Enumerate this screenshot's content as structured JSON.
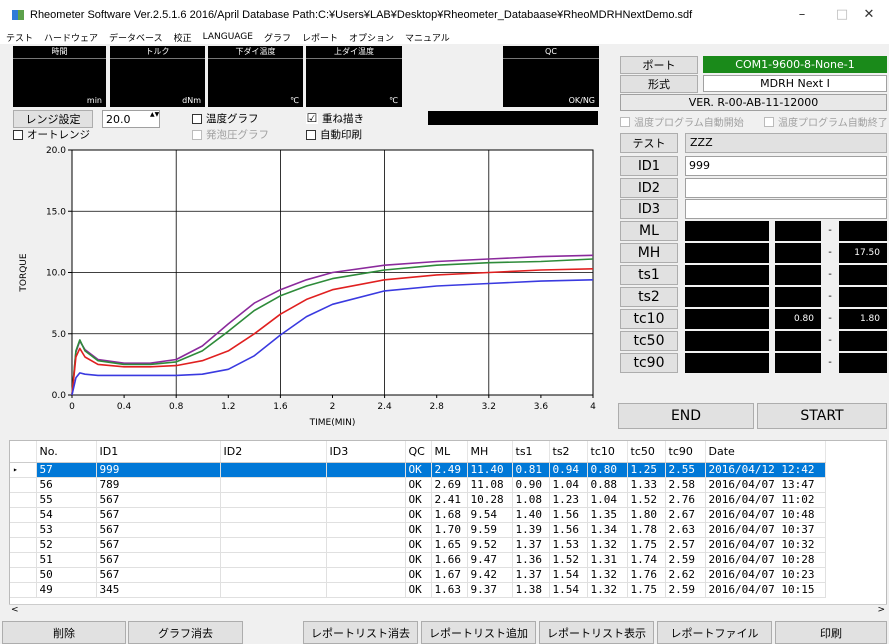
{
  "window": {
    "title": "Rheometer Software Ver.2.5.1.6  2016/April     Database Path:C:¥Users¥LAB¥Desktop¥Rheometer_Databaase¥RheoMDRHNextDemo.sdf",
    "minimize": "–",
    "maximize": "□",
    "close": "✕"
  },
  "menu": [
    "テスト",
    "ハードウェア",
    "データベース",
    "校正",
    "LANGUAGE",
    "グラフ",
    "レポート",
    "オプション",
    "マニュアル"
  ],
  "displays": {
    "time": {
      "label": "時間",
      "unit": "min"
    },
    "torque": {
      "label": "トルク",
      "unit": "dNm"
    },
    "lower_die": {
      "label": "下ダイ温度",
      "unit": "℃"
    },
    "upper_die": {
      "label": "上ダイ温度",
      "unit": "℃"
    },
    "qc": {
      "label": "QC",
      "unit": "OK/NG"
    }
  },
  "range": {
    "button": "レンジ設定",
    "value": "20.0",
    "auto_range": "オートレンジ",
    "spin": "▲▼"
  },
  "options": {
    "temp_graph": "温度グラフ",
    "foam_graph": "発泡圧グラフ",
    "overlay": "重ね描き",
    "overlay_check": "☑",
    "auto_print": "自動印刷",
    "temp_prog_start": "温度プログラム自動開始",
    "temp_prog_end": "温度プログラム自動終了"
  },
  "connection": {
    "port_label": "ポート",
    "port_value": "COM1-9600-8-None-1",
    "model_label": "形式",
    "model_value": "MDRH Next I",
    "version": "VER. R-00-AB-11-12000",
    "port_color": "#1a8a1a"
  },
  "test": {
    "label": "テスト",
    "value": "ZZZ"
  },
  "ids": [
    {
      "label": "ID1",
      "value": "999"
    },
    {
      "label": "ID2",
      "value": ""
    },
    {
      "label": "ID3",
      "value": ""
    }
  ],
  "metrics": [
    {
      "label": "ML",
      "min": "",
      "max": ""
    },
    {
      "label": "MH",
      "min": "",
      "max": "17.50"
    },
    {
      "label": "ts1",
      "min": "",
      "max": ""
    },
    {
      "label": "ts2",
      "min": "",
      "max": ""
    },
    {
      "label": "tc10",
      "min": "0.80",
      "max": "1.80"
    },
    {
      "label": "tc50",
      "min": "",
      "max": ""
    },
    {
      "label": "tc90",
      "min": "",
      "max": ""
    }
  ],
  "metric_dash": "-",
  "actions": {
    "end": "END",
    "start": "START"
  },
  "chart_data": {
    "type": "line",
    "xlabel": "TIME(MIN)",
    "ylabel": "TORQUE",
    "xlim": [
      0,
      4
    ],
    "ylim": [
      0,
      20
    ],
    "x_ticks": [
      "0",
      "0.4",
      "0.8",
      "1.2",
      "1.6",
      "2",
      "2.4",
      "2.8",
      "3.2",
      "3.6",
      "4"
    ],
    "y_ticks": [
      "0.0",
      "5.0",
      "10.0",
      "15.0",
      "20.0"
    ],
    "grid": true,
    "series": [
      {
        "color": "#8b2a9c",
        "x": [
          0,
          0.03,
          0.06,
          0.1,
          0.2,
          0.4,
          0.6,
          0.8,
          1.0,
          1.2,
          1.4,
          1.6,
          1.8,
          2.0,
          2.4,
          2.8,
          3.2,
          3.6,
          4.0
        ],
        "y": [
          0,
          3.5,
          4.4,
          3.7,
          2.9,
          2.6,
          2.6,
          2.9,
          4.0,
          5.8,
          7.5,
          8.6,
          9.4,
          10.0,
          10.6,
          10.9,
          11.1,
          11.3,
          11.4
        ]
      },
      {
        "color": "#2e8b3a",
        "x": [
          0,
          0.03,
          0.06,
          0.1,
          0.2,
          0.4,
          0.6,
          0.8,
          1.0,
          1.2,
          1.4,
          1.6,
          1.8,
          2.0,
          2.4,
          2.8,
          3.2,
          3.6,
          4.0
        ],
        "y": [
          0,
          3.6,
          4.5,
          3.6,
          2.8,
          2.5,
          2.5,
          2.7,
          3.6,
          5.2,
          6.9,
          8.1,
          8.9,
          9.5,
          10.2,
          10.6,
          10.8,
          10.9,
          11.1
        ]
      },
      {
        "color": "#e02020",
        "x": [
          0,
          0.03,
          0.06,
          0.1,
          0.2,
          0.4,
          0.6,
          0.8,
          1.0,
          1.2,
          1.4,
          1.6,
          1.8,
          2.0,
          2.4,
          2.8,
          3.2,
          3.6,
          4.0
        ],
        "y": [
          0,
          3.1,
          3.8,
          3.1,
          2.5,
          2.3,
          2.3,
          2.4,
          2.8,
          3.6,
          5.0,
          6.6,
          7.8,
          8.6,
          9.4,
          9.8,
          10.0,
          10.2,
          10.3
        ]
      },
      {
        "color": "#3a3ae0",
        "x": [
          0,
          0.03,
          0.06,
          0.1,
          0.2,
          0.4,
          0.6,
          0.8,
          1.0,
          1.2,
          1.4,
          1.6,
          1.8,
          2.0,
          2.4,
          2.8,
          3.2,
          3.6,
          4.0
        ],
        "y": [
          0,
          1.4,
          1.8,
          1.7,
          1.6,
          1.6,
          1.6,
          1.6,
          1.7,
          2.1,
          3.2,
          4.9,
          6.4,
          7.4,
          8.5,
          8.9,
          9.1,
          9.3,
          9.4
        ]
      }
    ]
  },
  "table": {
    "columns": [
      "No.",
      "ID1",
      "ID2",
      "ID3",
      "QC",
      "ML",
      "MH",
      "ts1",
      "ts2",
      "tc10",
      "tc50",
      "tc90",
      "Date"
    ],
    "rows": [
      [
        "57",
        "999",
        "",
        "",
        "OK",
        "2.49",
        "11.40",
        "0.81",
        "0.94",
        "0.80",
        "1.25",
        "2.55",
        "2016/04/12 12:42"
      ],
      [
        "56",
        "789",
        "",
        "",
        "OK",
        "2.69",
        "11.08",
        "0.90",
        "1.04",
        "0.88",
        "1.33",
        "2.58",
        "2016/04/07 13:47"
      ],
      [
        "55",
        "567",
        "",
        "",
        "OK",
        "2.41",
        "10.28",
        "1.08",
        "1.23",
        "1.04",
        "1.52",
        "2.76",
        "2016/04/07 11:02"
      ],
      [
        "54",
        "567",
        "",
        "",
        "OK",
        "1.68",
        "9.54",
        "1.40",
        "1.56",
        "1.35",
        "1.80",
        "2.67",
        "2016/04/07 10:48"
      ],
      [
        "53",
        "567",
        "",
        "",
        "OK",
        "1.70",
        "9.59",
        "1.39",
        "1.56",
        "1.34",
        "1.78",
        "2.63",
        "2016/04/07 10:37"
      ],
      [
        "52",
        "567",
        "",
        "",
        "OK",
        "1.65",
        "9.52",
        "1.37",
        "1.53",
        "1.32",
        "1.75",
        "2.57",
        "2016/04/07 10:32"
      ],
      [
        "51",
        "567",
        "",
        "",
        "OK",
        "1.66",
        "9.47",
        "1.36",
        "1.52",
        "1.31",
        "1.74",
        "2.59",
        "2016/04/07 10:28"
      ],
      [
        "50",
        "567",
        "",
        "",
        "OK",
        "1.67",
        "9.42",
        "1.37",
        "1.54",
        "1.32",
        "1.76",
        "2.62",
        "2016/04/07 10:23"
      ],
      [
        "49",
        "345",
        "",
        "",
        "OK",
        "1.63",
        "9.37",
        "1.38",
        "1.54",
        "1.32",
        "1.75",
        "2.59",
        "2016/04/07 10:15"
      ]
    ],
    "selected_marker": "▸"
  },
  "scroll": {
    "left": "<",
    "right": ">"
  },
  "bottom_buttons": [
    "削除",
    "グラフ消去",
    "レポートリスト消去",
    "レポートリスト追加",
    "レポートリスト表示",
    "レポートファイル",
    "印刷"
  ]
}
